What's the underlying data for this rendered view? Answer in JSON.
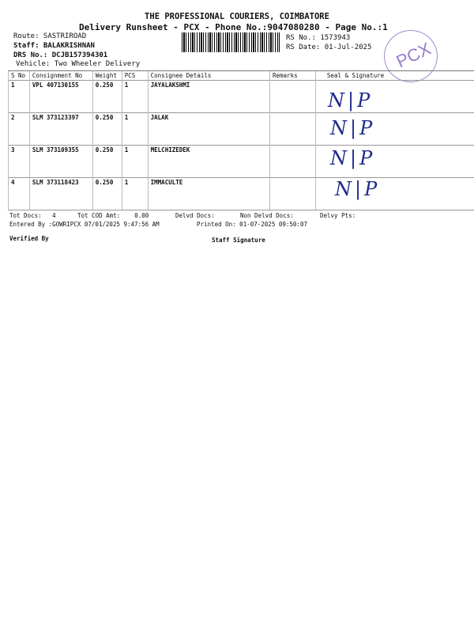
{
  "header": {
    "company": "THE PROFESSIONAL COURIERS, COIMBATORE",
    "subtitle": "Delivery Runsheet - PCX - Phone No.:9047080280 - Page No.:1",
    "route": "Route: SASTRIROAD",
    "staff": "Staff: BALAKRISHNAN",
    "drs": "DRS No.: DCJB157394301",
    "vehicle": "Vehicle: Two Wheeler Delivery",
    "rs_no": "RS No.: 1573943",
    "rs_date": "RS Date: 01-Jul-2025",
    "stamp": "PCX"
  },
  "table": {
    "columns": [
      "S No",
      "Consignment No",
      "Weight",
      "PCS",
      "Consignee Details",
      "Remarks",
      "Seal & Signature"
    ],
    "rows": [
      {
        "sno": "1",
        "consignment": "VPL 407130155",
        "weight": "0.250",
        "pcs": "1",
        "consignee": "JAYALAKSHMI",
        "remarks": "",
        "signature": "N|P"
      },
      {
        "sno": "2",
        "consignment": "SLM 373123397",
        "weight": "0.250",
        "pcs": "1",
        "consignee": "JALAK",
        "remarks": "",
        "signature": "N|P"
      },
      {
        "sno": "3",
        "consignment": "SLM 373109355",
        "weight": "0.250",
        "pcs": "1",
        "consignee": "MELCHIZEDEK",
        "remarks": "",
        "signature": "N|P"
      },
      {
        "sno": "4",
        "consignment": "SLM 373118423",
        "weight": "0.250",
        "pcs": "1",
        "consignee": "IMMACULTE",
        "remarks": "",
        "signature": "N|P"
      }
    ]
  },
  "footer": {
    "tot_docs": "Tot Docs:   4",
    "tot_cod": "Tot COD Amt:    0.00",
    "delvd": "Delvd Docs:",
    "non_delvd": "Non Delvd Docs:",
    "delvy_pts": "Delvy Pts:",
    "entered_by": "Entered By :GOWRIPCX 07/01/2025 9:47:56 AM",
    "printed_on": "Printed On: 01-07-2025 09:50:07",
    "verified_by": "Verified By",
    "staff_signature": "Staff Signature"
  }
}
